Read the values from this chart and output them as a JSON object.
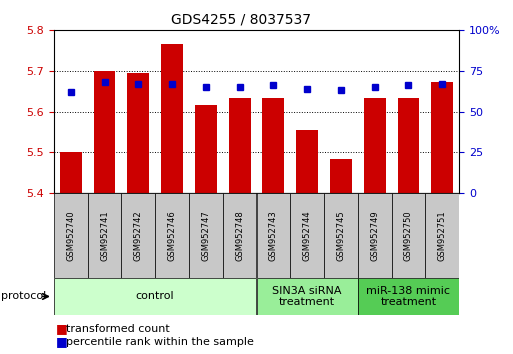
{
  "title": "GDS4255 / 8037537",
  "samples": [
    "GSM952740",
    "GSM952741",
    "GSM952742",
    "GSM952746",
    "GSM952747",
    "GSM952748",
    "GSM952743",
    "GSM952744",
    "GSM952745",
    "GSM952749",
    "GSM952750",
    "GSM952751"
  ],
  "bar_values": [
    5.5,
    5.7,
    5.695,
    5.765,
    5.615,
    5.632,
    5.633,
    5.555,
    5.483,
    5.633,
    5.633,
    5.673
  ],
  "percentile_values": [
    62,
    68,
    67,
    67,
    65,
    65,
    66,
    64,
    63,
    65,
    66,
    67
  ],
  "bar_color": "#cc0000",
  "dot_color": "#0000cc",
  "ylim_left": [
    5.4,
    5.8
  ],
  "ylim_right": [
    0,
    100
  ],
  "yticks_left": [
    5.4,
    5.5,
    5.6,
    5.7,
    5.8
  ],
  "yticks_right": [
    0,
    25,
    50,
    75,
    100
  ],
  "bar_bottom": 5.4,
  "bar_width": 0.65,
  "sample_box_color": "#c8c8c8",
  "control_color": "#ccffcc",
  "sin3a_color": "#99ee99",
  "mir138_color": "#55cc55",
  "groups": [
    {
      "label": "control",
      "start": 0,
      "end": 5,
      "color": "#ccffcc"
    },
    {
      "label": "SIN3A siRNA\ntreatment",
      "start": 6,
      "end": 8,
      "color": "#99ee99"
    },
    {
      "label": "miR-138 mimic\ntreatment",
      "start": 9,
      "end": 11,
      "color": "#55cc55"
    }
  ],
  "left_axis_color": "#cc0000",
  "right_axis_color": "#0000cc",
  "title_fontsize": 10,
  "tick_fontsize": 8,
  "sample_fontsize": 6,
  "group_fontsize": 8,
  "legend_fontsize": 8
}
